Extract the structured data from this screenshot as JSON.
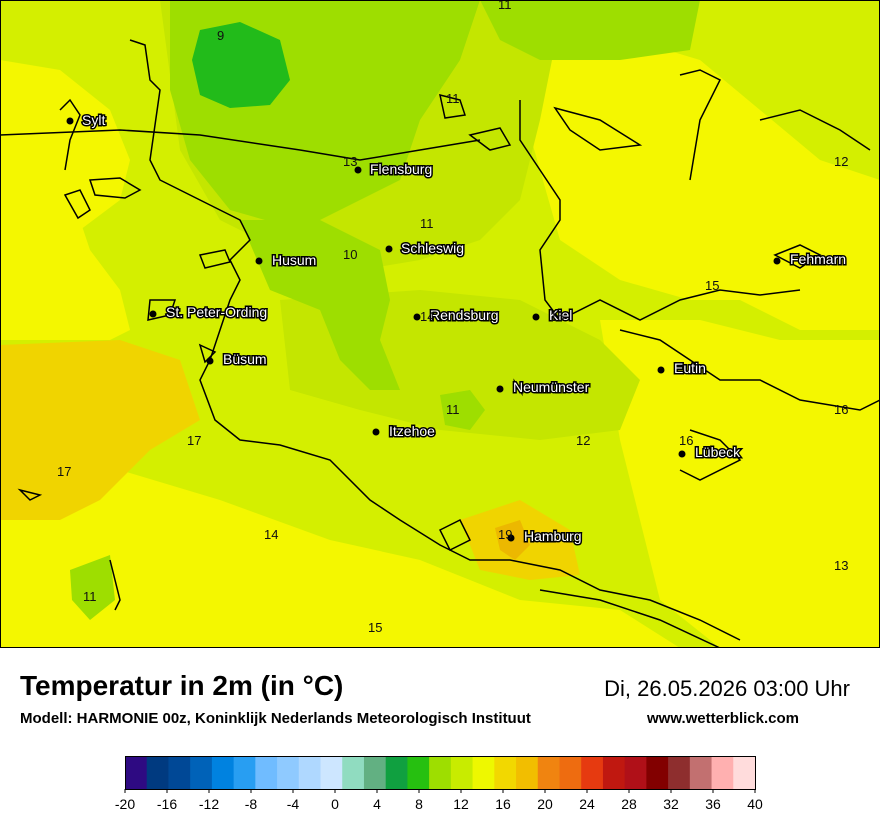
{
  "header": {
    "title": "Temperatur in 2m (in °C)",
    "datetime": "Di, 26.05.2026 03:00 Uhr",
    "model": "Modell: HARMONIE 00z, Koninklijk Nederlands Meteorologisch Instituut",
    "website": "www.wetterblick.com"
  },
  "colors": {
    "land_base": "#d4ef00",
    "zone_lightgreen": "#c4e600",
    "zone_green": "#9ede00",
    "zone_darkgreen": "#22bb1a",
    "zone_yellow": "#f4f700",
    "zone_orange": "#f0d400",
    "zone_darkorange": "#ecb800"
  },
  "cities": [
    {
      "name": "Sylt"
    },
    {
      "name": "Flensburg"
    },
    {
      "name": "Husum"
    },
    {
      "name": "Schleswig"
    },
    {
      "name": "St. Peter-Ording"
    },
    {
      "name": "Rendsburg"
    },
    {
      "name": "Kiel"
    },
    {
      "name": "Fehmarn"
    },
    {
      "name": "Büsum"
    },
    {
      "name": "Neumünster"
    },
    {
      "name": "Eutin"
    },
    {
      "name": "Itzehoe"
    },
    {
      "name": "Lübeck"
    },
    {
      "name": "Hamburg"
    }
  ],
  "values": [
    "11",
    "9",
    "11",
    "13",
    "12",
    "11",
    "10",
    "15",
    "14",
    "15",
    "11",
    "16",
    "17",
    "12",
    "16",
    "17",
    "14",
    "19",
    "13",
    "11",
    "15"
  ],
  "legend": {
    "colors": [
      "#2e0a82",
      "#003a80",
      "#004896",
      "#0062b8",
      "#0082e0",
      "#289ef2",
      "#70bcff",
      "#8fcaff",
      "#afd8ff",
      "#cde6ff",
      "#90dcc0",
      "#62b082",
      "#10a040",
      "#26c010",
      "#9ede00",
      "#c8ec00",
      "#eef800",
      "#f2d800",
      "#f2be00",
      "#f08410",
      "#ee6c10",
      "#e63a10",
      "#c01810",
      "#b01018",
      "#820000",
      "#8e2e2e",
      "#c27070",
      "#ffb0b0",
      "#ffdcdc"
    ],
    "ticks": [
      "-20",
      "-16",
      "-12",
      "-8",
      "-4",
      "0",
      "4",
      "8",
      "12",
      "16",
      "20",
      "24",
      "28",
      "32",
      "36",
      "40"
    ]
  }
}
